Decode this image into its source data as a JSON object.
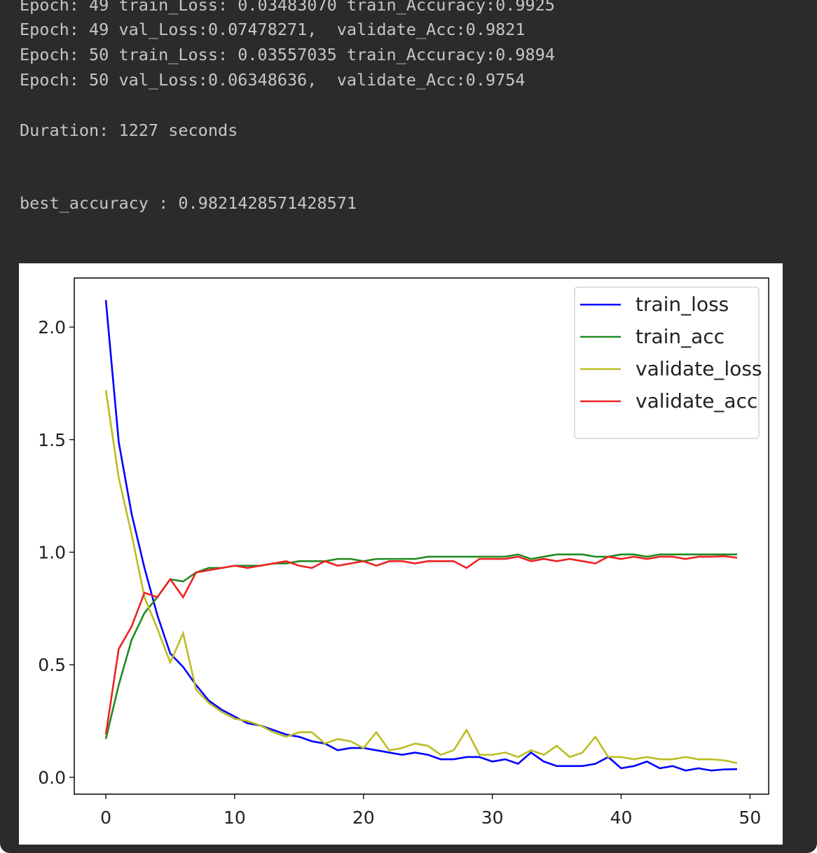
{
  "console": {
    "lines": [
      "Epoch: 49 train_Loss: 0.03483070 train_Accuracy:0.9925",
      "Epoch: 49 val_Loss:0.07478271,  validate_Acc:0.9821",
      "Epoch: 50 train_Loss: 0.03557035 train_Accuracy:0.9894",
      "Epoch: 50 val_Loss:0.06348636,  validate_Acc:0.9754",
      "Duration: 1227 seconds",
      "best_accuracy : 0.9821428571428571"
    ]
  },
  "chart_data": {
    "type": "line",
    "x": [
      0,
      1,
      2,
      3,
      4,
      5,
      6,
      7,
      8,
      9,
      10,
      11,
      12,
      13,
      14,
      15,
      16,
      17,
      18,
      19,
      20,
      21,
      22,
      23,
      24,
      25,
      26,
      27,
      28,
      29,
      30,
      31,
      32,
      33,
      34,
      35,
      36,
      37,
      38,
      39,
      40,
      41,
      42,
      43,
      44,
      45,
      46,
      47,
      48,
      49
    ],
    "series": [
      {
        "name": "train_loss",
        "color": "#0000ff",
        "values": [
          2.12,
          1.49,
          1.17,
          0.93,
          0.72,
          0.55,
          0.49,
          0.41,
          0.34,
          0.3,
          0.27,
          0.24,
          0.23,
          0.21,
          0.19,
          0.18,
          0.16,
          0.15,
          0.12,
          0.13,
          0.13,
          0.12,
          0.11,
          0.1,
          0.11,
          0.1,
          0.08,
          0.08,
          0.09,
          0.09,
          0.07,
          0.08,
          0.06,
          0.11,
          0.07,
          0.05,
          0.05,
          0.05,
          0.06,
          0.09,
          0.04,
          0.05,
          0.07,
          0.04,
          0.05,
          0.03,
          0.04,
          0.03,
          0.035,
          0.036
        ]
      },
      {
        "name": "train_acc",
        "color": "#228b22",
        "values": [
          0.17,
          0.41,
          0.61,
          0.73,
          0.8,
          0.88,
          0.87,
          0.91,
          0.93,
          0.93,
          0.94,
          0.94,
          0.94,
          0.95,
          0.95,
          0.96,
          0.96,
          0.96,
          0.97,
          0.97,
          0.96,
          0.97,
          0.97,
          0.97,
          0.97,
          0.98,
          0.98,
          0.98,
          0.98,
          0.98,
          0.98,
          0.98,
          0.99,
          0.97,
          0.98,
          0.99,
          0.99,
          0.99,
          0.98,
          0.98,
          0.99,
          0.99,
          0.98,
          0.99,
          0.99,
          0.99,
          0.99,
          0.99,
          0.99,
          0.99
        ]
      },
      {
        "name": "validate_loss",
        "color": "#bcbd22",
        "values": [
          1.72,
          1.33,
          1.08,
          0.8,
          0.66,
          0.51,
          0.64,
          0.39,
          0.33,
          0.29,
          0.26,
          0.25,
          0.23,
          0.2,
          0.18,
          0.2,
          0.2,
          0.15,
          0.17,
          0.16,
          0.13,
          0.2,
          0.12,
          0.13,
          0.15,
          0.14,
          0.1,
          0.12,
          0.21,
          0.1,
          0.1,
          0.11,
          0.09,
          0.12,
          0.1,
          0.14,
          0.09,
          0.11,
          0.18,
          0.09,
          0.09,
          0.08,
          0.09,
          0.08,
          0.08,
          0.09,
          0.08,
          0.08,
          0.075,
          0.063
        ]
      },
      {
        "name": "validate_acc",
        "color": "#ee2222",
        "values": [
          0.19,
          0.57,
          0.67,
          0.82,
          0.8,
          0.88,
          0.8,
          0.91,
          0.92,
          0.93,
          0.94,
          0.93,
          0.94,
          0.95,
          0.96,
          0.94,
          0.93,
          0.96,
          0.94,
          0.95,
          0.96,
          0.94,
          0.96,
          0.96,
          0.95,
          0.96,
          0.96,
          0.96,
          0.93,
          0.97,
          0.97,
          0.97,
          0.98,
          0.96,
          0.97,
          0.96,
          0.97,
          0.96,
          0.95,
          0.98,
          0.97,
          0.98,
          0.97,
          0.98,
          0.98,
          0.97,
          0.98,
          0.98,
          0.9821,
          0.9754
        ]
      }
    ],
    "xlim": [
      -2.45,
      51.45
    ],
    "ylim": [
      -0.075,
      2.218
    ],
    "xticks": [
      0,
      10,
      20,
      30,
      40,
      50
    ],
    "yticks": [
      {
        "value": 0,
        "label": "0.0"
      },
      0.5,
      {
        "value": 1,
        "label": "1.0"
      },
      1.5,
      {
        "value": 2,
        "label": "2.0"
      }
    ],
    "legend": "upper right",
    "grid": false
  }
}
